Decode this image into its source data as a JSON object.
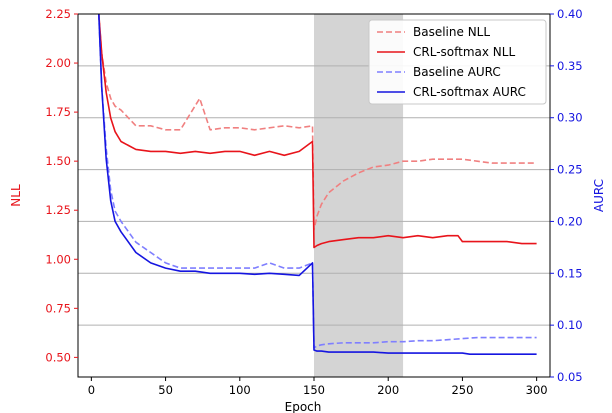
{
  "chart_data": {
    "type": "line",
    "title": "",
    "xlabel": "Epoch",
    "ylabel_left": "NLL",
    "ylabel_right": "AURC",
    "xlim": [
      -9,
      309
    ],
    "ylim_left": [
      0.4,
      2.25
    ],
    "ylim_right": [
      0.05,
      0.4
    ],
    "xticks": [
      0,
      50,
      100,
      150,
      200,
      250,
      300
    ],
    "yticks_left": [
      "0.50",
      "0.75",
      "1.00",
      "1.25",
      "1.50",
      "1.75",
      "2.00",
      "2.25"
    ],
    "yticks_right": [
      "0.05",
      "0.10",
      "0.15",
      "0.20",
      "0.25",
      "0.30",
      "0.35",
      "0.40"
    ],
    "yticks_left_values": [
      0.5,
      0.75,
      1.0,
      1.25,
      1.5,
      1.75,
      2.0,
      2.25
    ],
    "yticks_right_values": [
      0.05,
      0.1,
      0.15,
      0.2,
      0.25,
      0.3,
      0.35,
      0.4
    ],
    "grid": "horizontal-right-axis",
    "shaded_region": [
      150,
      210
    ],
    "legend_position": "top-right",
    "colors": {
      "left_axis": "#e8141b",
      "right_axis": "#1515e0",
      "shade": "#d4d4d4"
    },
    "series": [
      {
        "name": "Baseline NLL",
        "axis": "left",
        "color": "#f08080",
        "style": "dashed",
        "x": [
          5,
          7,
          10,
          13,
          16,
          20,
          25,
          30,
          40,
          50,
          60,
          73,
          80,
          90,
          100,
          110,
          120,
          130,
          140,
          149,
          150,
          152,
          155,
          160,
          170,
          180,
          190,
          200,
          210,
          220,
          230,
          240,
          250,
          260,
          270,
          280,
          290,
          300
        ],
        "y": [
          2.25,
          2.05,
          1.9,
          1.82,
          1.78,
          1.76,
          1.72,
          1.68,
          1.68,
          1.66,
          1.66,
          1.82,
          1.66,
          1.67,
          1.67,
          1.66,
          1.67,
          1.68,
          1.67,
          1.68,
          1.15,
          1.22,
          1.28,
          1.34,
          1.4,
          1.44,
          1.47,
          1.48,
          1.5,
          1.5,
          1.51,
          1.51,
          1.51,
          1.5,
          1.49,
          1.49,
          1.49,
          1.49
        ]
      },
      {
        "name": "CRL-softmax NLL",
        "axis": "left",
        "color": "#e8141b",
        "style": "solid",
        "x": [
          5,
          7,
          10,
          13,
          16,
          20,
          25,
          30,
          40,
          50,
          60,
          70,
          80,
          90,
          100,
          110,
          120,
          130,
          140,
          149,
          150,
          152,
          155,
          160,
          170,
          180,
          190,
          200,
          210,
          220,
          230,
          240,
          247,
          250,
          260,
          270,
          280,
          290,
          300
        ],
        "y": [
          2.25,
          2.05,
          1.85,
          1.72,
          1.65,
          1.6,
          1.58,
          1.56,
          1.55,
          1.55,
          1.54,
          1.55,
          1.54,
          1.55,
          1.55,
          1.53,
          1.55,
          1.53,
          1.55,
          1.6,
          1.06,
          1.07,
          1.08,
          1.09,
          1.1,
          1.11,
          1.11,
          1.12,
          1.11,
          1.12,
          1.11,
          1.12,
          1.12,
          1.09,
          1.09,
          1.09,
          1.09,
          1.08,
          1.08
        ]
      },
      {
        "name": "Baseline AURC",
        "axis": "right",
        "color": "#7f7fff",
        "style": "dashed",
        "x": [
          5,
          7,
          10,
          13,
          16,
          20,
          25,
          30,
          40,
          50,
          60,
          70,
          80,
          90,
          100,
          110,
          120,
          130,
          140,
          149,
          150,
          152,
          155,
          160,
          170,
          180,
          190,
          200,
          210,
          220,
          230,
          240,
          250,
          260,
          270,
          280,
          290,
          300
        ],
        "y": [
          0.4,
          0.33,
          0.27,
          0.23,
          0.21,
          0.2,
          0.19,
          0.18,
          0.17,
          0.16,
          0.155,
          0.155,
          0.155,
          0.155,
          0.155,
          0.155,
          0.16,
          0.155,
          0.155,
          0.16,
          0.078,
          0.08,
          0.081,
          0.082,
          0.083,
          0.083,
          0.083,
          0.084,
          0.084,
          0.085,
          0.085,
          0.086,
          0.087,
          0.088,
          0.088,
          0.088,
          0.088,
          0.088
        ]
      },
      {
        "name": "CRL-softmax AURC",
        "axis": "right",
        "color": "#1515e0",
        "style": "solid",
        "x": [
          5,
          7,
          10,
          13,
          16,
          20,
          25,
          30,
          40,
          50,
          60,
          70,
          80,
          90,
          100,
          110,
          120,
          130,
          140,
          149,
          150,
          152,
          155,
          160,
          170,
          180,
          190,
          200,
          210,
          220,
          230,
          240,
          250,
          255,
          260,
          270,
          280,
          290,
          300
        ],
        "y": [
          0.4,
          0.33,
          0.26,
          0.22,
          0.2,
          0.19,
          0.18,
          0.17,
          0.16,
          0.155,
          0.152,
          0.152,
          0.15,
          0.15,
          0.15,
          0.149,
          0.15,
          0.149,
          0.148,
          0.16,
          0.076,
          0.075,
          0.075,
          0.074,
          0.074,
          0.074,
          0.074,
          0.073,
          0.073,
          0.073,
          0.073,
          0.073,
          0.073,
          0.072,
          0.072,
          0.072,
          0.072,
          0.072,
          0.072
        ]
      }
    ]
  }
}
